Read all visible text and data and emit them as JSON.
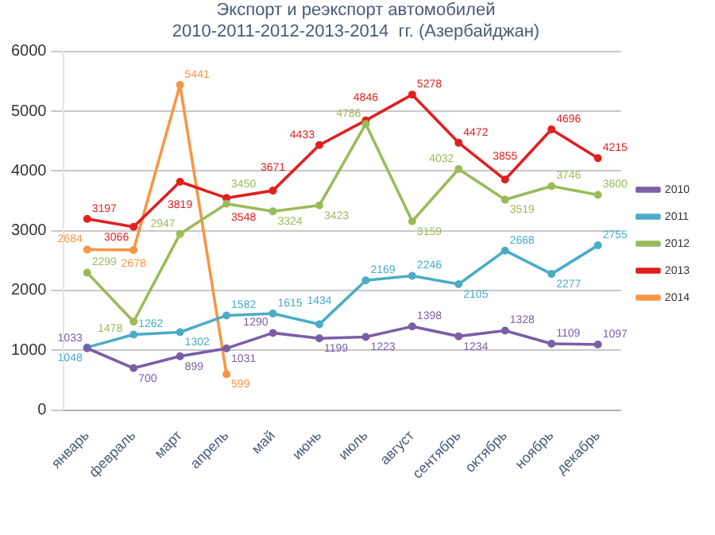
{
  "chart_data": {
    "type": "line",
    "title": "Экспорт и реэкспорт автомобилей",
    "subtitle": "2010-2011-2012-2013-2014  гг. (Азербайджан)",
    "categories": [
      "январь",
      "февраль",
      "март",
      "апрель",
      "май",
      "июнь",
      "июль",
      "август",
      "сентябрь",
      "октябрь",
      "ноябрь",
      "декабрь"
    ],
    "series": [
      {
        "name": "2010",
        "color": "#7b5ea7",
        "values": [
          1033,
          700,
          899,
          1031,
          1290,
          1199,
          1223,
          1398,
          1234,
          1328,
          1109,
          1097
        ]
      },
      {
        "name": "2011",
        "color": "#4bacc6",
        "values": [
          1048,
          1262,
          1302,
          1582,
          1615,
          1434,
          2169,
          2246,
          2105,
          2668,
          2277,
          2755
        ]
      },
      {
        "name": "2012",
        "color": "#9bbb59",
        "values": [
          2299,
          1478,
          2947,
          3450,
          3324,
          3423,
          4786,
          3159,
          4032,
          3519,
          3746,
          3600
        ]
      },
      {
        "name": "2013",
        "color": "#e02020",
        "values": [
          3197,
          3066,
          3819,
          3548,
          3671,
          4433,
          4846,
          5278,
          4472,
          3855,
          4696,
          4215
        ]
      },
      {
        "name": "2014",
        "color": "#f79646",
        "values": [
          2684,
          2678,
          5441,
          599,
          null,
          null,
          null,
          null,
          null,
          null,
          null,
          null
        ]
      }
    ],
    "ylim": [
      0,
      6000
    ],
    "yticks": [
      0,
      1000,
      2000,
      3000,
      4000,
      5000,
      6000
    ],
    "grid": "y",
    "legend": "right",
    "marker": "circle",
    "line_style": "solid",
    "data_labels": true
  }
}
